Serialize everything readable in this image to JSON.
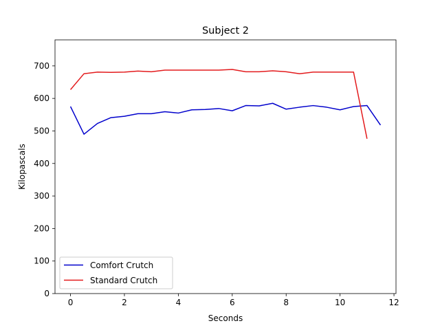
{
  "chart_data": {
    "type": "line",
    "title": "Subject 2",
    "xlabel": "Seconds",
    "ylabel": "Kilopascals",
    "xlim": [
      -0.575,
      12.075
    ],
    "ylim": [
      0,
      780
    ],
    "xticks": [
      0,
      2,
      4,
      6,
      8,
      10,
      12
    ],
    "yticks": [
      0,
      100,
      200,
      300,
      400,
      500,
      600,
      700
    ],
    "grid": false,
    "legend_position": "lower-left",
    "series": [
      {
        "name": "Comfort Crutch",
        "color": "#0000cc",
        "x": [
          0,
          0.5,
          1,
          1.5,
          2,
          2.5,
          3,
          3.5,
          4,
          4.5,
          5,
          5.5,
          6,
          6.5,
          7,
          7.5,
          8,
          8.5,
          9,
          9.5,
          10,
          10.5,
          11,
          11.5
        ],
        "y": [
          575,
          490,
          523,
          541,
          545,
          553,
          553,
          559,
          555,
          565,
          566,
          569,
          562,
          578,
          577,
          585,
          567,
          573,
          578,
          573,
          565,
          575,
          578,
          518
        ]
      },
      {
        "name": "Standard Crutch",
        "color": "#e31a1c",
        "x": [
          0,
          0.5,
          1,
          1.5,
          2,
          2.5,
          3,
          3.5,
          4,
          4.5,
          5,
          5.5,
          6,
          6.5,
          7,
          7.5,
          8,
          8.5,
          9,
          9.5,
          10,
          10.5,
          11
        ],
        "y": [
          627,
          676,
          681,
          680,
          681,
          684,
          682,
          687,
          687,
          687,
          687,
          687,
          689,
          682,
          682,
          685,
          682,
          676,
          681,
          681,
          681,
          681,
          476
        ]
      }
    ]
  }
}
